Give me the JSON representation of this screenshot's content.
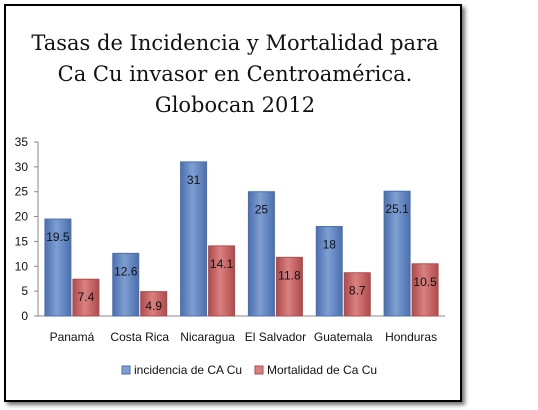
{
  "chart_data": {
    "type": "bar",
    "title": "Tasas de Incidencia y Mortalidad para\nCa Cu invasor en Centroamérica.\nGlobocan 2012",
    "categories": [
      "Panamá",
      "Costa Rica",
      "Nicaragua",
      "El Salvador",
      "Guatemala",
      "Honduras"
    ],
    "series": [
      {
        "name": "incidencia de CA Cu",
        "values": [
          19.5,
          12.6,
          31,
          25,
          18,
          25.1
        ],
        "labels": [
          "19.5",
          "12.6",
          "31",
          "25",
          "18",
          "25.1"
        ],
        "color": "#7f9fd1",
        "edge": "#4a6fb0"
      },
      {
        "name": "Mortalidad de Ca Cu",
        "values": [
          7.4,
          4.9,
          14.1,
          11.8,
          8.7,
          10.5
        ],
        "labels": [
          "7.4",
          "4.9",
          "14.1",
          "11.8",
          "8.7",
          "10.5"
        ],
        "color": "#d98181",
        "edge": "#b04a4a"
      }
    ],
    "y_ticks": [
      "0",
      "5",
      "10",
      "15",
      "20",
      "25",
      "30",
      "35"
    ],
    "ylim": [
      0,
      35
    ],
    "legend_position": "bottom",
    "grid": false
  }
}
